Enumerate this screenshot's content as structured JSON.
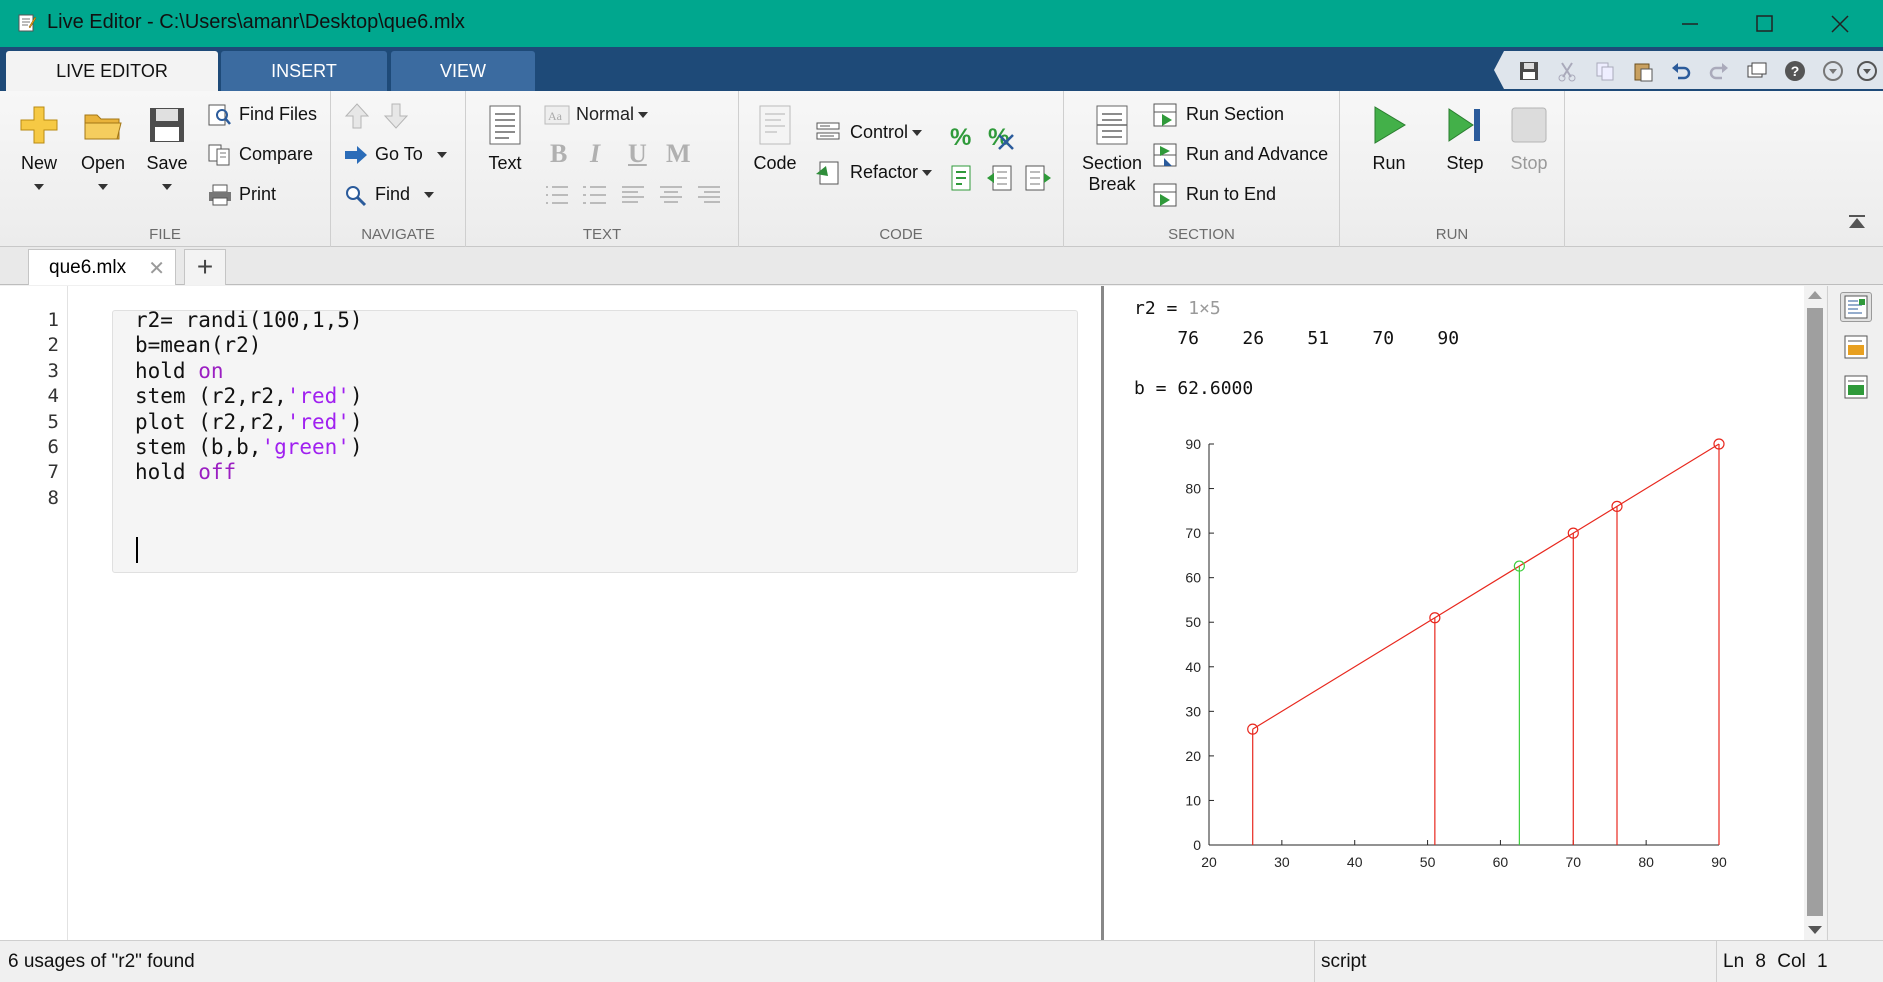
{
  "window": {
    "title": "Live Editor - C:\\Users\\amanr\\Desktop\\que6.mlx"
  },
  "ribbon_tabs": [
    {
      "label": "LIVE EDITOR",
      "active": true
    },
    {
      "label": "INSERT",
      "active": false
    },
    {
      "label": "VIEW",
      "active": false
    }
  ],
  "groups": {
    "file": {
      "label": "FILE",
      "new": "New",
      "open": "Open",
      "save": "Save",
      "find_files": "Find Files",
      "compare": "Compare",
      "print": "Print"
    },
    "navigate": {
      "label": "NAVIGATE",
      "go_to": "Go To",
      "find": "Find"
    },
    "text": {
      "label": "TEXT",
      "text": "Text",
      "style": "Normal",
      "bold": "B",
      "italic": "I",
      "underline": "U",
      "mono": "M"
    },
    "code": {
      "label": "CODE",
      "code": "Code",
      "control": "Control",
      "refactor": "Refactor"
    },
    "section": {
      "label": "SECTION",
      "section_break_1": "Section",
      "section_break_2": "Break",
      "run_section": "Run Section",
      "run_and_advance": "Run and Advance",
      "run_to_end": "Run to End"
    },
    "run": {
      "label": "RUN",
      "run": "Run",
      "step": "Step",
      "stop": "Stop"
    }
  },
  "document_tab": {
    "name": "que6.mlx",
    "close": "✕",
    "add": "+"
  },
  "code_lines": [
    {
      "n": "1",
      "parts": [
        {
          "t": "r2= randi(100,1,5)",
          "c": "plain"
        }
      ]
    },
    {
      "n": "2",
      "parts": [
        {
          "t": "b=mean(r2)",
          "c": "plain"
        }
      ]
    },
    {
      "n": "3",
      "parts": [
        {
          "t": "hold ",
          "c": "plain"
        },
        {
          "t": "on",
          "c": "kw"
        }
      ]
    },
    {
      "n": "4",
      "parts": [
        {
          "t": "stem (r2,r2,",
          "c": "plain"
        },
        {
          "t": "'red'",
          "c": "str"
        },
        {
          "t": ")",
          "c": "plain"
        }
      ]
    },
    {
      "n": "5",
      "parts": [
        {
          "t": "plot (r2,r2,",
          "c": "plain"
        },
        {
          "t": "'red'",
          "c": "str"
        },
        {
          "t": ")",
          "c": "plain"
        }
      ]
    },
    {
      "n": "6",
      "parts": [
        {
          "t": "stem (b,b,",
          "c": "plain"
        },
        {
          "t": "'green'",
          "c": "str"
        },
        {
          "t": ")",
          "c": "plain"
        }
      ]
    },
    {
      "n": "7",
      "parts": [
        {
          "t": "hold ",
          "c": "plain"
        },
        {
          "t": "off",
          "c": "kw"
        }
      ]
    },
    {
      "n": "8",
      "parts": []
    }
  ],
  "output": {
    "r2_label": "r2 = ",
    "r2_size": "1×5",
    "r2_values": "    76    26    51    70    90",
    "b_line": "b = 62.6000"
  },
  "chart_data": {
    "type": "line",
    "title": "",
    "xlabel": "",
    "ylabel": "",
    "xlim": [
      20,
      90
    ],
    "ylim": [
      0,
      90
    ],
    "xticks": [
      20,
      30,
      40,
      50,
      60,
      70,
      80,
      90
    ],
    "yticks": [
      0,
      10,
      20,
      30,
      40,
      50,
      60,
      70,
      80,
      90
    ],
    "grid": false,
    "series": [
      {
        "kind": "stem",
        "color": "#e8281e",
        "x": [
          76,
          26,
          51,
          70,
          90
        ],
        "y": [
          76,
          26,
          51,
          70,
          90
        ]
      },
      {
        "kind": "line",
        "color": "#e8281e",
        "x": [
          26,
          51,
          70,
          76,
          90
        ],
        "y": [
          26,
          51,
          70,
          76,
          90
        ]
      },
      {
        "kind": "stem",
        "color": "#3ccf3c",
        "x": [
          62.6
        ],
        "y": [
          62.6
        ]
      }
    ]
  },
  "status": {
    "message": "6 usages of \"r2\" found",
    "file_type": "script",
    "position": "Ln  8   Col  1"
  },
  "colors": {
    "title_bar": "#00a78e",
    "tab_strip": "#1e4a78",
    "keyword": "#9b1fc2",
    "string": "#a020f0"
  }
}
